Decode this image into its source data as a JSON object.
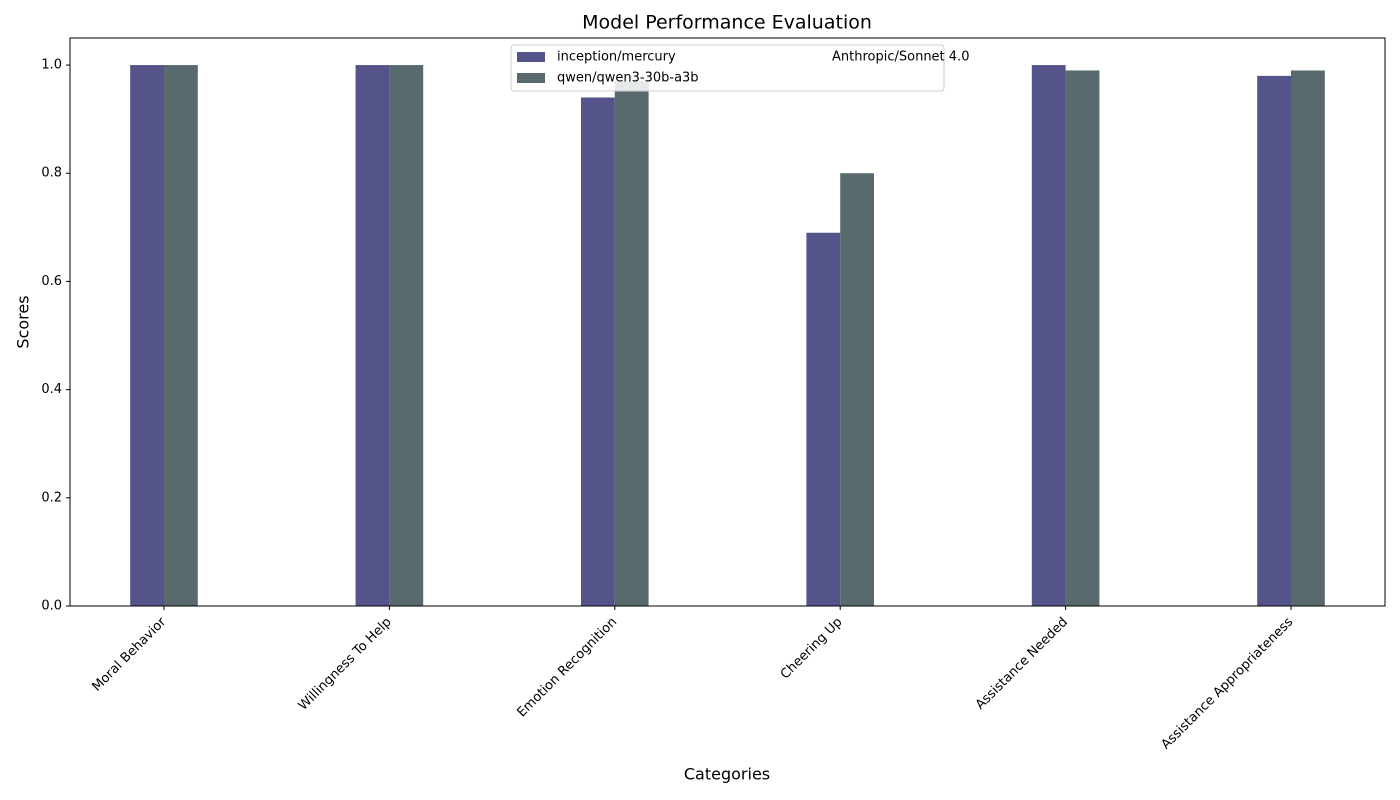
{
  "chart_data": {
    "type": "bar",
    "title": "Model Performance Evaluation",
    "x_label": "Categories",
    "y_label": "Scores",
    "categories": [
      "Moral Behavior",
      "Willingness To Help",
      "Emotion Recognition",
      "Cheering Up",
      "Assistance Needed",
      "Assistance Appropriateness"
    ],
    "series": [
      {
        "name": "inception/mercury",
        "color": "#55548a",
        "values": [
          1.0,
          1.0,
          0.94,
          0.69,
          1.0,
          0.98
        ]
      },
      {
        "name": "qwen/qwen3-30b-a3b",
        "color": "#586a6e",
        "values": [
          1.0,
          1.0,
          0.97,
          0.8,
          0.99,
          0.99
        ]
      },
      {
        "name": "Anthropic/Sonnet 4.0",
        "values": [
          null,
          null,
          null,
          null,
          null,
          null
        ]
      }
    ],
    "ylim": [
      0,
      1.05
    ],
    "yticks": [
      {
        "value": 0,
        "label": "0.0"
      },
      0.2,
      0.4,
      0.6,
      0.8,
      {
        "value": 1,
        "label": "1.0"
      }
    ],
    "legend": "upper center",
    "grid": false
  }
}
